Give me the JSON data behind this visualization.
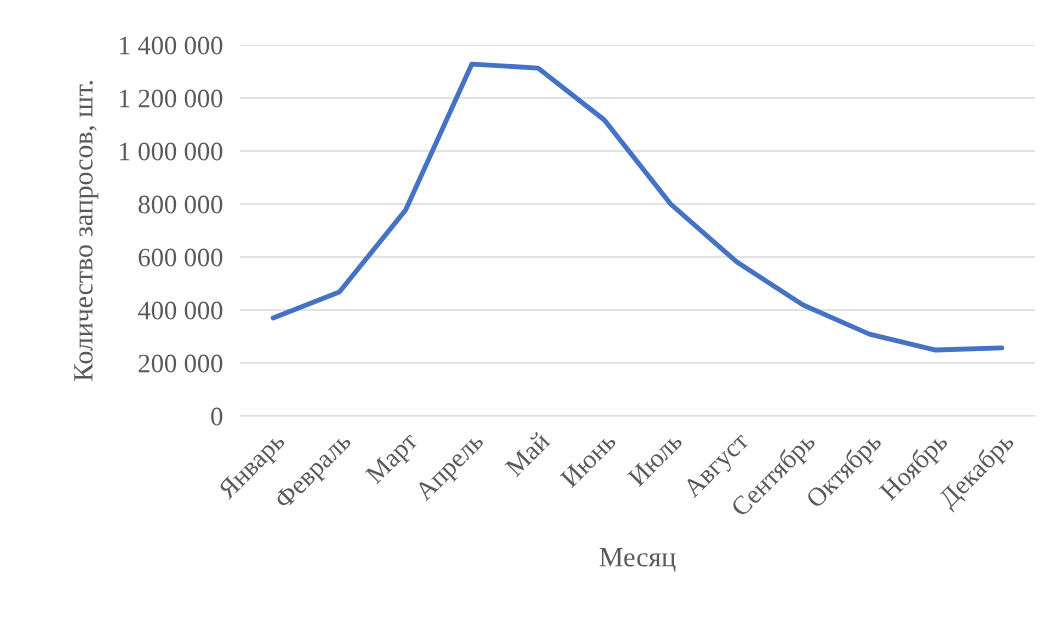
{
  "chart_data": {
    "type": "line",
    "xlabel": "Месяц",
    "ylabel": "Количество запросов, шт.",
    "categories": [
      "Январь",
      "Февраль",
      "Март",
      "Апрель",
      "Май",
      "Июнь",
      "Июль",
      "Август",
      "Сентябрь",
      "Октябрь",
      "Ноябрь",
      "Декабрь"
    ],
    "series": [
      {
        "color": "#4472c4",
        "values": [
          370000,
          468000,
          777000,
          1328000,
          1313000,
          1117000,
          800000,
          581000,
          419000,
          309000,
          249000,
          257000
        ]
      }
    ],
    "ylim": [
      0,
      1400000
    ],
    "yticks": [
      0,
      {
        "value": 200000,
        "label": "200 000"
      },
      {
        "value": 400000,
        "label": "400 000"
      },
      {
        "value": 600000,
        "label": "600 000"
      },
      {
        "value": 800000,
        "label": "800 000"
      },
      {
        "value": 1000000,
        "label": "1 000 000"
      },
      {
        "value": 1200000,
        "label": "1 200 000"
      },
      {
        "value": 1400000,
        "label": "1 400 000"
      }
    ],
    "grid": "y",
    "legend": false,
    "marker": "none",
    "line_style": "solid"
  }
}
